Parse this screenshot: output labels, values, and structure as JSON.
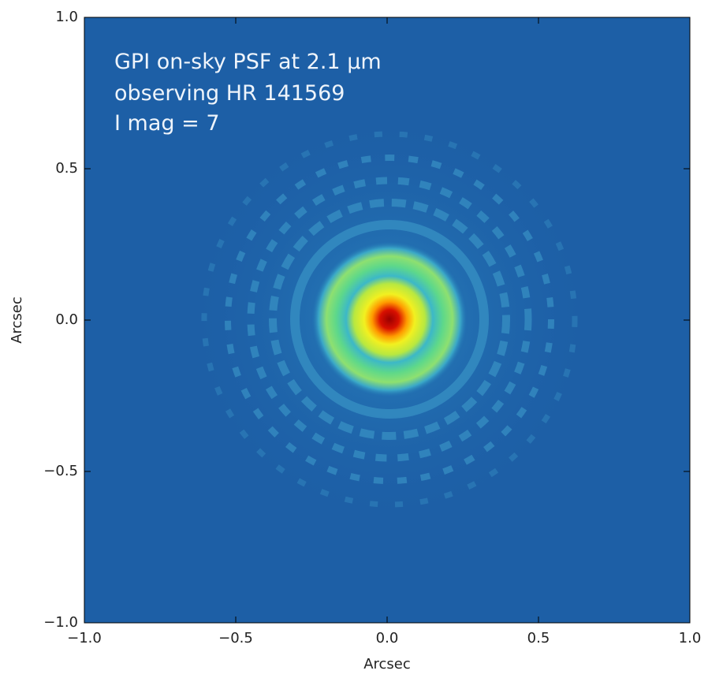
{
  "chart_data": {
    "type": "image",
    "annotations": [
      "GPI on-sky PSF at 2.1 μm",
      "observing HR 141569",
      "I mag = 7"
    ],
    "xlabel": "Arcsec",
    "ylabel": "Arcsec",
    "xlim": [
      -1,
      1
    ],
    "ylim": [
      -1,
      1
    ],
    "xticks": [
      {
        "value": -1,
        "label": "−1.0"
      },
      {
        "value": -0.5,
        "label": "−0.5"
      },
      {
        "value": 0,
        "label": "0.0"
      },
      0.5,
      {
        "value": 1,
        "label": "1.0"
      }
    ],
    "yticks": [
      {
        "value": -1,
        "label": "−1.0"
      },
      {
        "value": -0.5,
        "label": "−0.5"
      },
      {
        "value": 0,
        "label": "0.0"
      },
      0.5,
      {
        "value": 1,
        "label": "1.0"
      }
    ]
  }
}
